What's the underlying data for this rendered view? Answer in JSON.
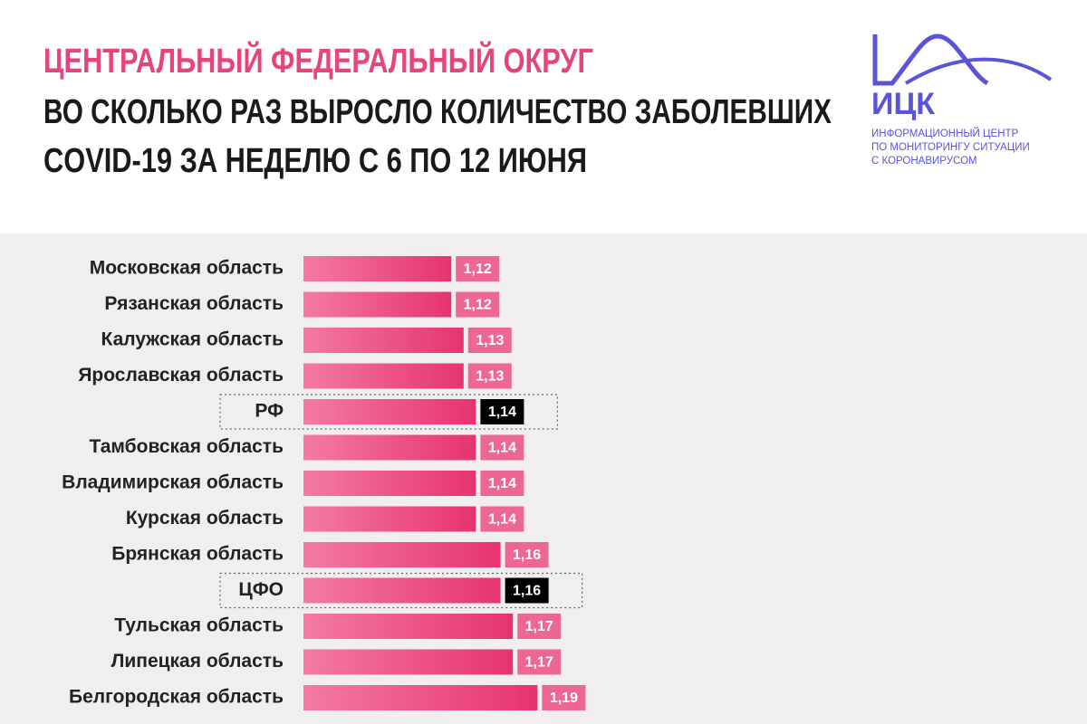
{
  "logo": {
    "name": "ИЦК",
    "lines": [
      "ИНФОРМАЦИОННЫЙ ЦЕНТР",
      "ПО МОНИТОРИНГУ СИТУАЦИИ",
      "С КОРОНАВИРУСОМ"
    ]
  },
  "chart_data": {
    "type": "barh",
    "title": "ЦЕНТРАЛЬНЫЙ ФЕДЕРАЛЬНЫЙ ОКРУГ",
    "subtitle": [
      "ВО СКОЛЬКО РАЗ ВЫРОСЛО КОЛИЧЕСТВО ЗАБОЛЕВШИХ",
      "COVID-19 ЗА НЕДЕЛЮ С 6 ПО 12 ИЮНЯ"
    ],
    "categories": [
      "Московская область",
      "Рязанская область",
      "Калужская область",
      "Ярославская область",
      "РФ",
      "Тамбовская область",
      "Владимирская область",
      "Курская область",
      "Брянская область",
      "ЦФО",
      "Тульская область",
      "Липецкая область",
      "Белгородская область"
    ],
    "values": [
      1.12,
      1.12,
      1.13,
      1.13,
      1.14,
      1.14,
      1.14,
      1.14,
      1.16,
      1.16,
      1.17,
      1.17,
      1.19
    ],
    "value_labels": [
      "1,12",
      "1,12",
      "1,13",
      "1,13",
      "1,14",
      "1,14",
      "1,14",
      "1,14",
      "1,16",
      "1,16",
      "1,17",
      "1,17",
      "1,19"
    ],
    "xlim": [
      1,
      1.2
    ],
    "color": "#ec4f86",
    "highlight_indices": [
      4,
      9
    ],
    "highlight_color": "#000000"
  }
}
